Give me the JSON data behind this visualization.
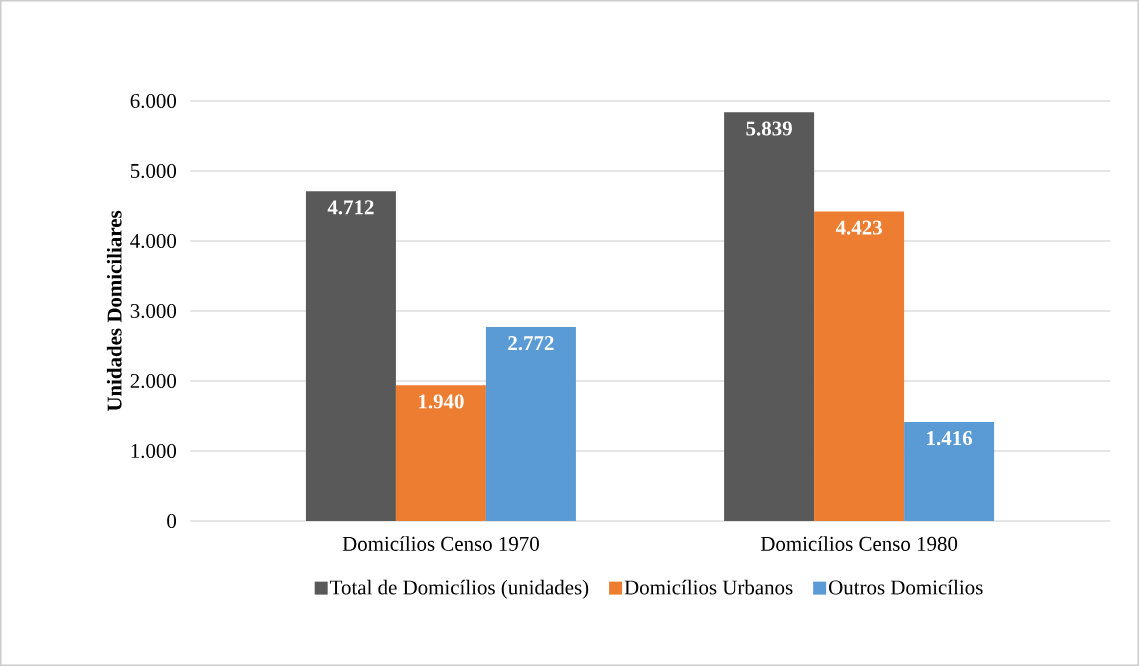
{
  "chart_data": {
    "type": "bar",
    "ylabel": "Unidades Domiciliares",
    "categories": [
      "Domicílios Censo 1970",
      "Domicílios Censo 1980"
    ],
    "series": [
      {
        "name": "Total de Domicílios (unidades)",
        "color": "#595959",
        "values": [
          4712,
          5839
        ],
        "value_labels": [
          "4.712",
          "5.839"
        ]
      },
      {
        "name": "Domicílios Urbanos",
        "color": "#ed7d31",
        "values": [
          1940,
          4423
        ],
        "value_labels": [
          "1.940",
          "4.423"
        ]
      },
      {
        "name": "Outros Domicílios",
        "color": "#5b9bd5",
        "values": [
          2772,
          1416
        ],
        "value_labels": [
          "2.772",
          "1.416"
        ]
      }
    ],
    "ylim": [
      0,
      6000
    ],
    "yticks": [
      {
        "value": 0,
        "label": "0"
      },
      {
        "value": 1000,
        "label": "1.000"
      },
      {
        "value": 2000,
        "label": "2.000"
      },
      {
        "value": 3000,
        "label": "3.000"
      },
      {
        "value": 4000,
        "label": "4.000"
      },
      {
        "value": 5000,
        "label": "5.000"
      },
      {
        "value": 6000,
        "label": "6.000"
      }
    ],
    "grid": "y",
    "legend": "bottom"
  }
}
